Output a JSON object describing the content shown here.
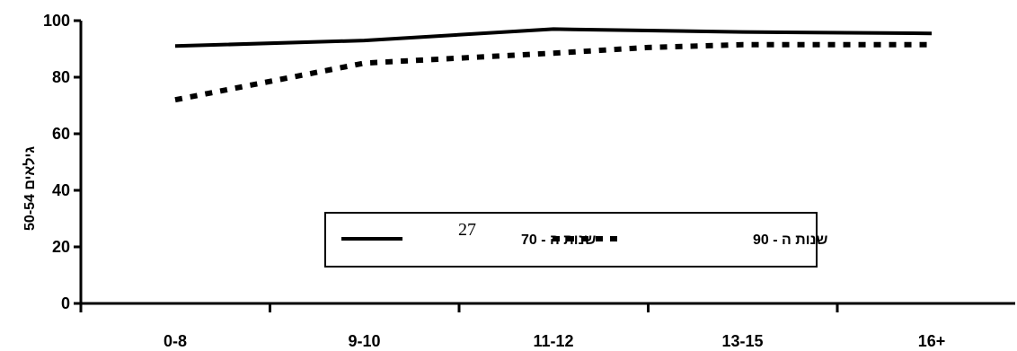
{
  "chart_data": {
    "type": "line",
    "categories": [
      "0-8",
      "9-10",
      "11-12",
      "13-15",
      "16+"
    ],
    "x": [
      0,
      1,
      2,
      2.5,
      3,
      4
    ],
    "series": [
      {
        "name": "שנות ה - 70",
        "style": "solid",
        "values": [
          91,
          93,
          97,
          96.5,
          96,
          95.5
        ]
      },
      {
        "name": "שנות ה - 90",
        "style": "dotted",
        "values": [
          72,
          85,
          88.5,
          90.5,
          91.5,
          91.5
        ]
      }
    ],
    "ylabel": "גילאים 50-54",
    "ylim": [
      0,
      100
    ],
    "yticks": [
      "0",
      "20",
      "40",
      "60",
      "80",
      "100"
    ],
    "grid": false,
    "legend_position": "center",
    "annotation": "27",
    "colors": {
      "line": "#000000",
      "background": "#ffffff"
    }
  }
}
